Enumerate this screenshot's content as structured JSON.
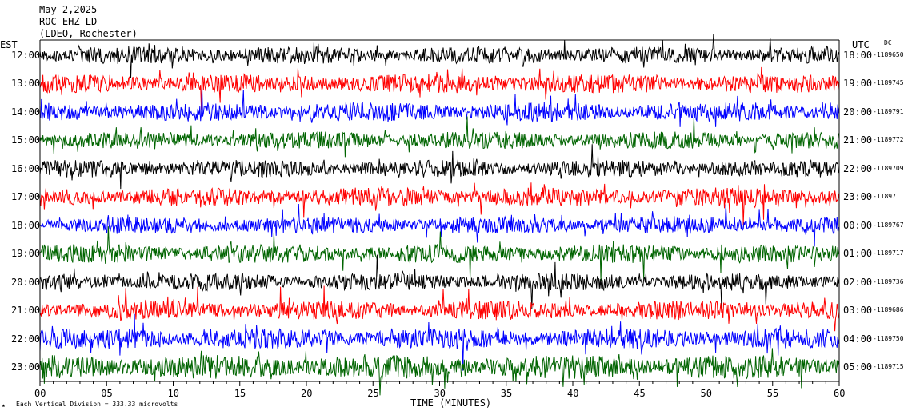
{
  "header": {
    "date": "May 2,2025",
    "station": "ROC EHZ LD --",
    "network": "(LDEO, Rochester)"
  },
  "labels": {
    "left_tz": "EST",
    "right_tz": "UTC",
    "dc": "DC",
    "xlabel": "TIME (MINUTES)",
    "scale_note": "Each Vertical Division =  333.33 microvolts"
  },
  "colors": [
    "#000000",
    "#ff0000",
    "#0000ff",
    "#006400"
  ],
  "chart_data": {
    "type": "line",
    "title": "ROC EHZ LD --",
    "xlabel": "TIME (MINUTES)",
    "xlim": [
      0,
      60
    ],
    "x_ticks": [
      "00",
      "05",
      "10",
      "15",
      "20",
      "25",
      "30",
      "35",
      "40",
      "45",
      "50",
      "55",
      "60"
    ],
    "series": [
      {
        "left": "12:00",
        "right": "18:00",
        "dc": "-1189650"
      },
      {
        "left": "13:00",
        "right": "19:00",
        "dc": "-1189745"
      },
      {
        "left": "14:00",
        "right": "20:00",
        "dc": "-1189791"
      },
      {
        "left": "15:00",
        "right": "21:00",
        "dc": "-1189772"
      },
      {
        "left": "16:00",
        "right": "22:00",
        "dc": "-1189709"
      },
      {
        "left": "17:00",
        "right": "23:00",
        "dc": "-1189711"
      },
      {
        "left": "18:00",
        "right": "00:00",
        "dc": "-1189767"
      },
      {
        "left": "19:00",
        "right": "01:00",
        "dc": "-1189717"
      },
      {
        "left": "20:00",
        "right": "02:00",
        "dc": "-1189736"
      },
      {
        "left": "21:00",
        "right": "03:00",
        "dc": "-1189686"
      },
      {
        "left": "22:00",
        "right": "04:00",
        "dc": "-1189750"
      },
      {
        "left": "23:00",
        "right": "05:00",
        "dc": "-1189715"
      }
    ]
  }
}
